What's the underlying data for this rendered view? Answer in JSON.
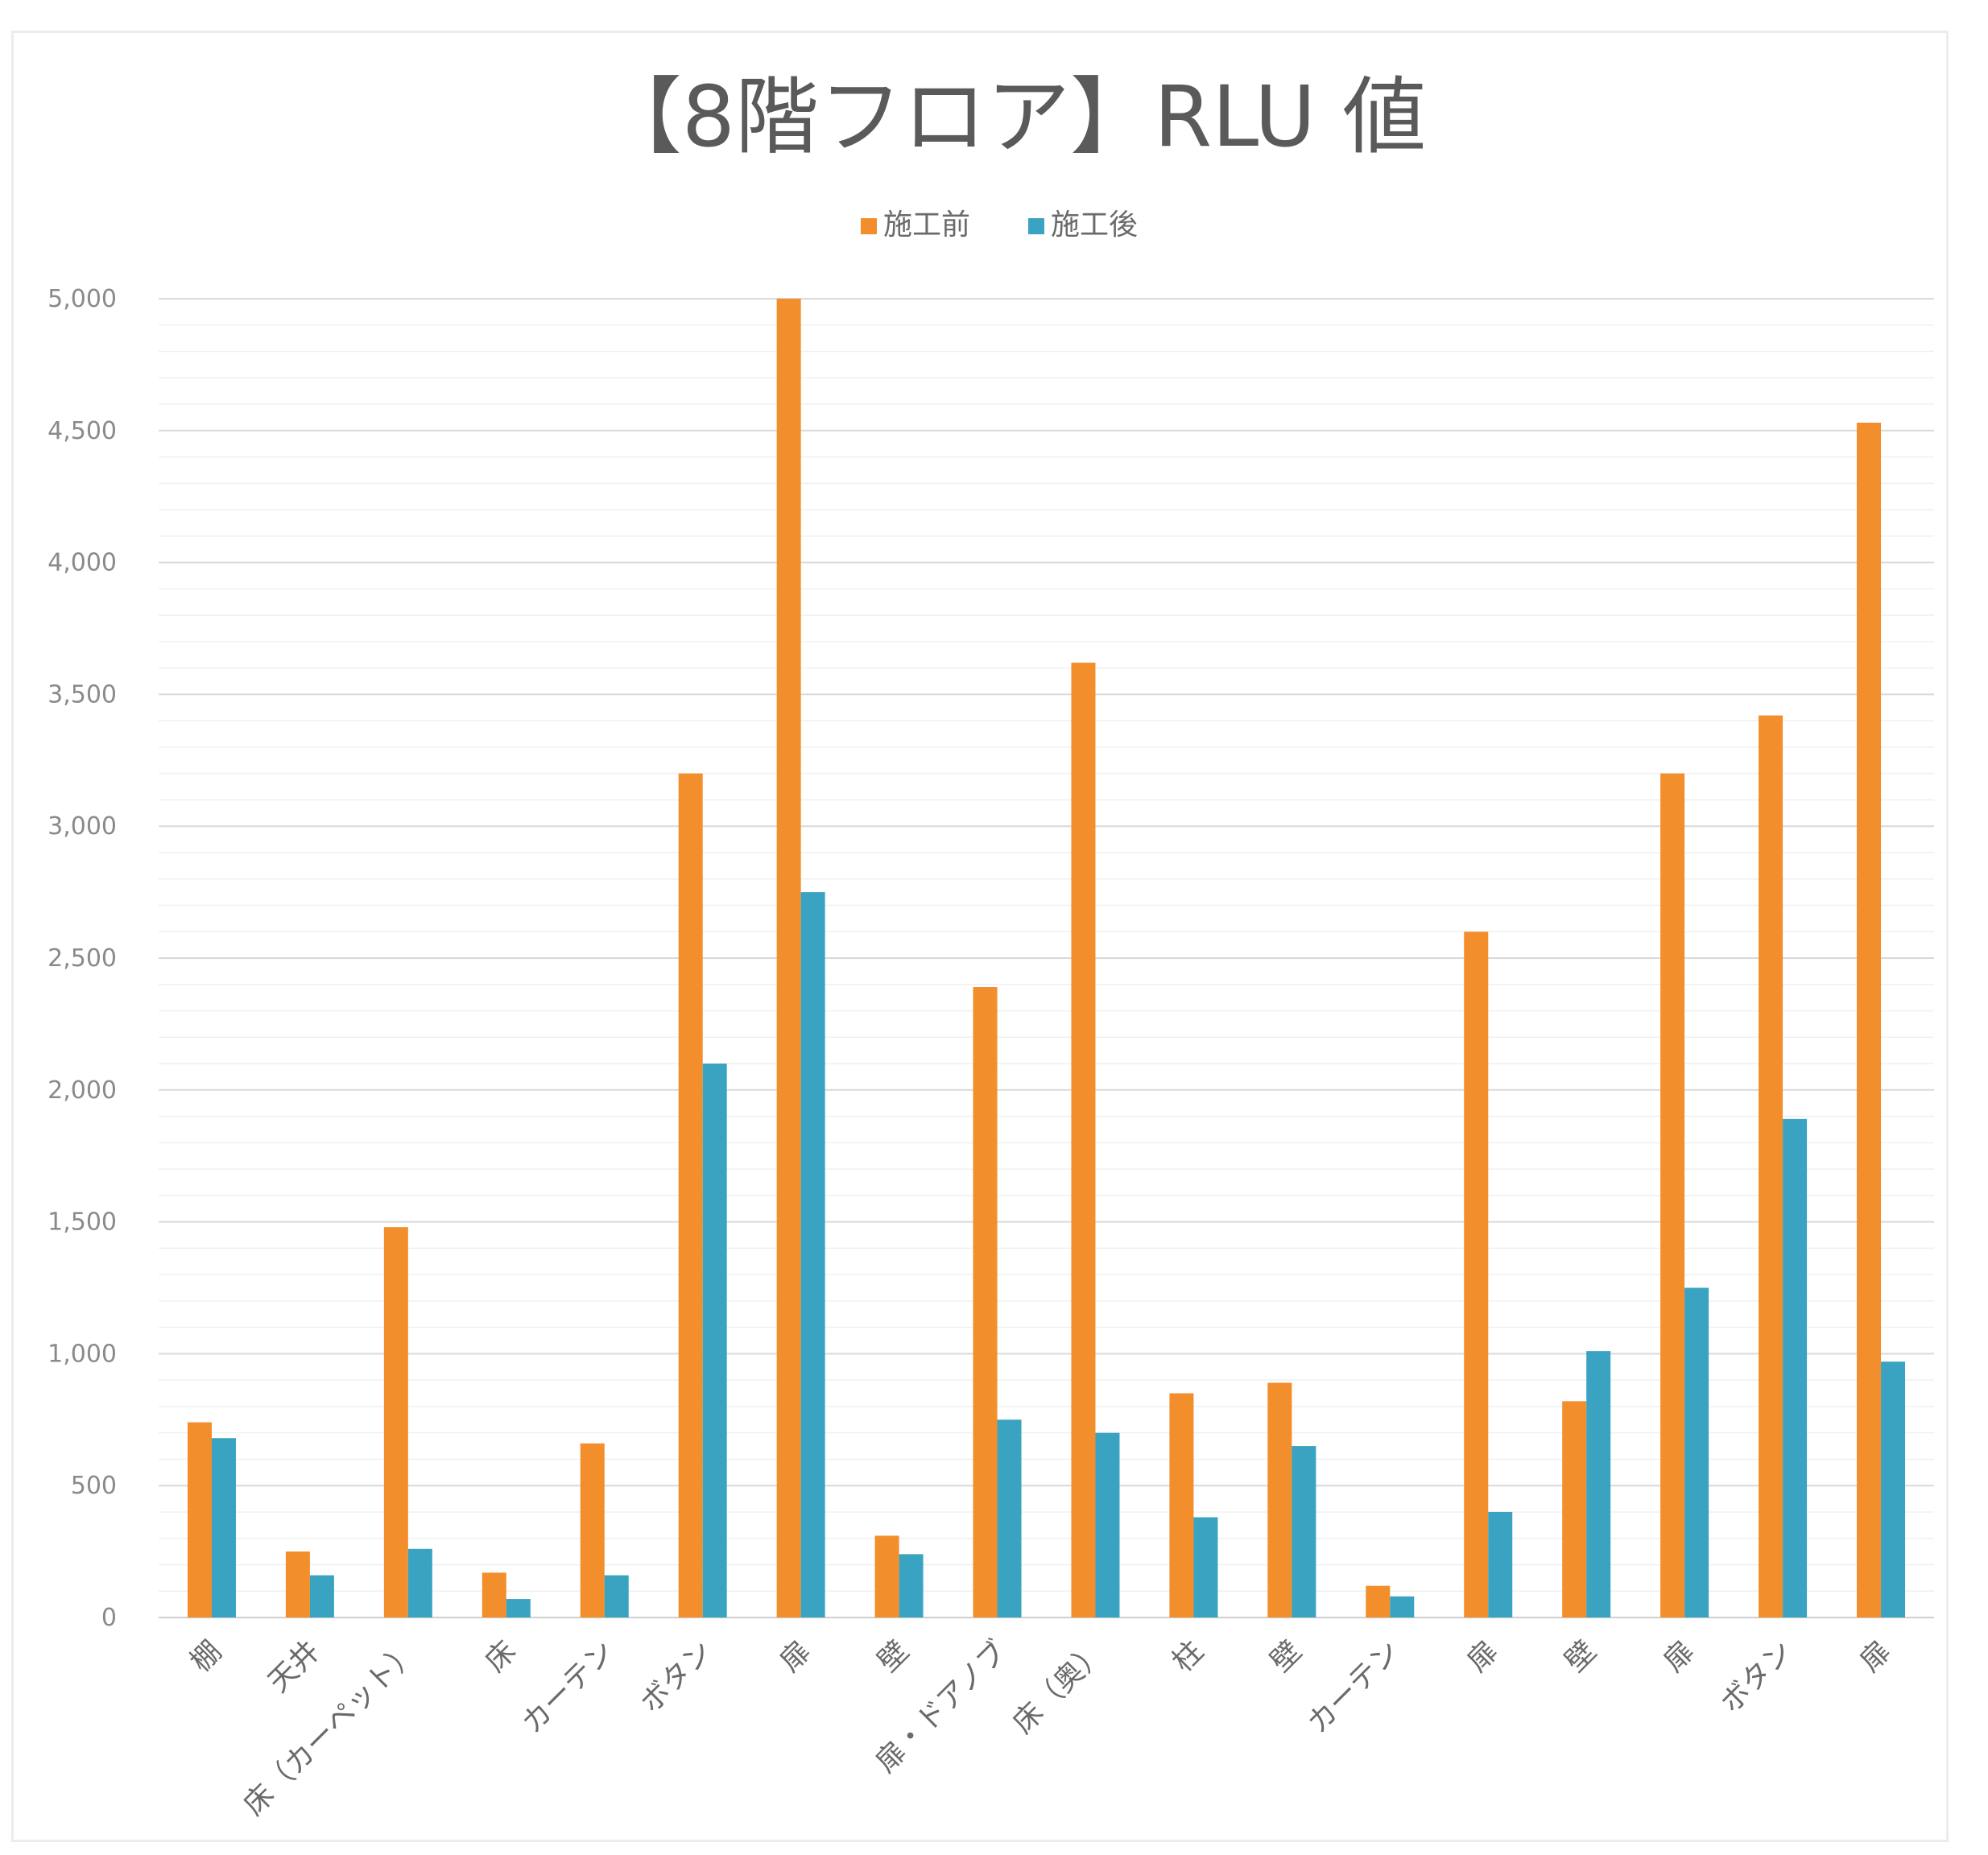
{
  "chart_data": {
    "type": "bar",
    "title": "【8階フロア】RLU 値",
    "xlabel": "",
    "ylabel": "",
    "ylim": [
      0,
      5000
    ],
    "yticks": [
      0,
      500,
      1000,
      1500,
      2000,
      2500,
      3000,
      3500,
      4000,
      4500,
      5000
    ],
    "ytick_labels": [
      "0",
      "500",
      "1,000",
      "1,500",
      "2,000",
      "2,500",
      "3,000",
      "3,500",
      "4,000",
      "4,500",
      "5,000"
    ],
    "grid": true,
    "legend_position": "top-center",
    "categories": [
      "棚",
      "天井",
      "床（カーペット）",
      "床",
      "カーテン",
      "ボタン",
      "扉",
      "壁",
      "扉・ドアノブ",
      "床（奥）",
      "柱",
      "壁",
      "カーテン",
      "扉",
      "壁",
      "扉",
      "ボタン",
      "扉"
    ],
    "series": [
      {
        "name": "施工前",
        "color": "#f28e2b",
        "values": [
          740,
          250,
          1480,
          170,
          660,
          3200,
          5000,
          310,
          2390,
          3620,
          850,
          890,
          120,
          2600,
          820,
          3200,
          3420,
          4530
        ]
      },
      {
        "name": "施工後",
        "color": "#3aa3c2",
        "values": [
          680,
          160,
          260,
          70,
          160,
          2100,
          2750,
          240,
          750,
          700,
          380,
          650,
          80,
          400,
          1010,
          1250,
          1890,
          970
        ]
      }
    ]
  }
}
